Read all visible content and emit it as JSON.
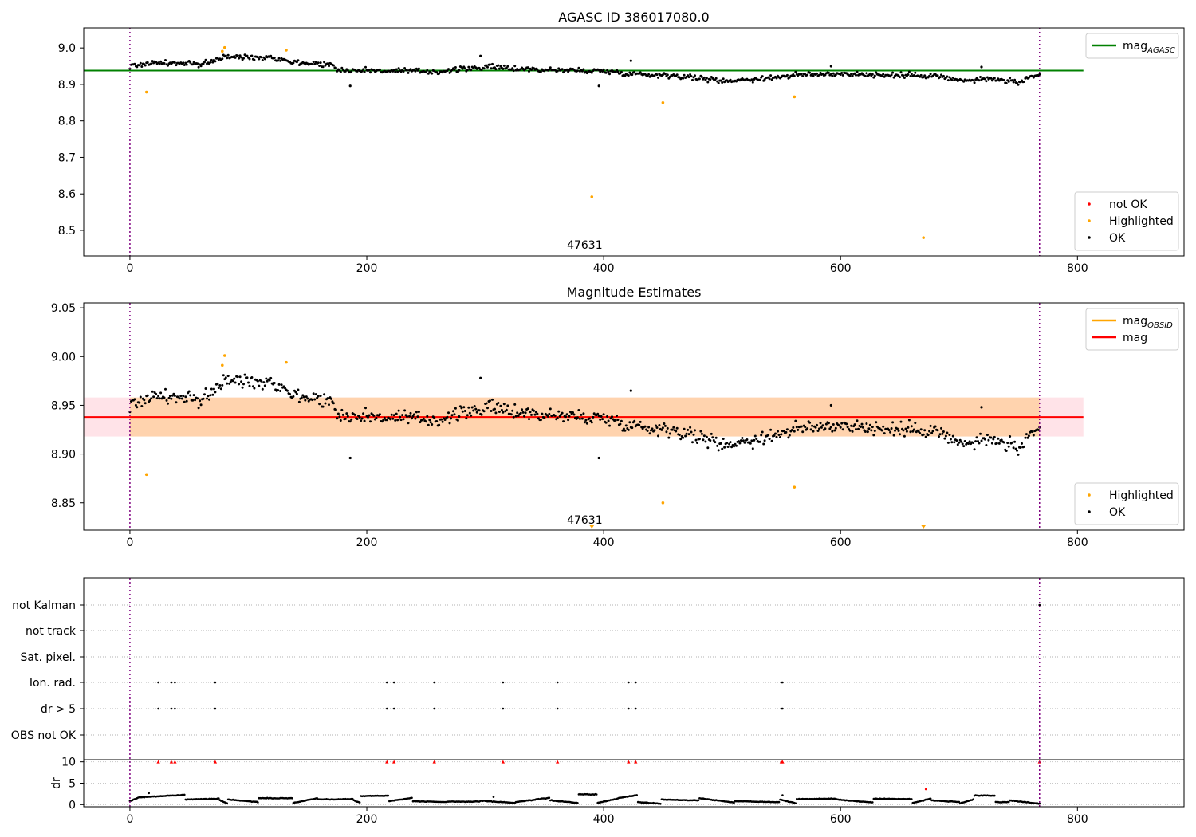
{
  "chart_data": [
    {
      "type": "scatter",
      "title": "AGASC ID 386017080.0",
      "xlim": [
        -39,
        890
      ],
      "ylim": [
        8.43,
        9.055
      ],
      "xticks": [
        0,
        200,
        400,
        600,
        800
      ],
      "yticks": [
        8.5,
        8.6,
        8.7,
        8.8,
        8.9,
        9.0
      ],
      "ytick_labels": [
        "8.5",
        "8.6",
        "8.7",
        "8.8",
        "8.9",
        "9.0"
      ],
      "grid": false,
      "obsid_boundaries": [
        0,
        768
      ],
      "obsid_label": {
        "text": "47631",
        "x": 384
      },
      "reference_lines": [
        {
          "name": "mag_AGASC",
          "legend": "mag",
          "legend_sub": "AGASC",
          "y": 8.938,
          "x_range": [
            -39,
            805
          ],
          "color": "#008000"
        }
      ],
      "series": [
        {
          "name": "not OK",
          "color": "#ff0000",
          "points": []
        },
        {
          "name": "Highlighted",
          "color": "#ffa500",
          "points": [
            [
              14,
              8.879
            ],
            [
              78,
              8.991
            ],
            [
              80,
              9.001
            ],
            [
              132,
              8.994
            ],
            [
              390,
              8.592
            ],
            [
              450,
              8.85
            ],
            [
              561,
              8.866
            ],
            [
              670,
              8.48
            ]
          ]
        },
        {
          "name": "OK",
          "color": "#000000",
          "trend": [
            [
              0,
              8.95
            ],
            [
              20,
              8.96
            ],
            [
              60,
              8.955
            ],
            [
              80,
              8.975
            ],
            [
              120,
              8.975
            ],
            [
              140,
              8.96
            ],
            [
              170,
              8.955
            ],
            [
              175,
              8.94
            ],
            [
              260,
              8.935
            ],
            [
              300,
              8.948
            ],
            [
              350,
              8.94
            ],
            [
              400,
              8.937
            ],
            [
              430,
              8.928
            ],
            [
              460,
              8.925
            ],
            [
              500,
              8.91
            ],
            [
              530,
              8.915
            ],
            [
              560,
              8.925
            ],
            [
              600,
              8.93
            ],
            [
              640,
              8.925
            ],
            [
              680,
              8.925
            ],
            [
              700,
              8.91
            ],
            [
              730,
              8.915
            ],
            [
              750,
              8.905
            ],
            [
              768,
              8.925
            ]
          ],
          "outliers": [
            [
              186,
              8.896
            ],
            [
              296,
              8.978
            ],
            [
              396,
              8.896
            ],
            [
              423,
              8.965
            ],
            [
              592,
              8.95
            ],
            [
              719,
              8.948
            ]
          ]
        }
      ],
      "legends": [
        {
          "position": "upper right",
          "entries": [
            "mag_AGASC"
          ]
        },
        {
          "position": "lower right",
          "entries": [
            "not OK",
            "Highlighted",
            "OK"
          ]
        }
      ]
    },
    {
      "type": "scatter",
      "title": "Magnitude Estimates",
      "xlim": [
        -39,
        890
      ],
      "ylim": [
        8.822,
        9.055
      ],
      "xticks": [
        0,
        200,
        400,
        600,
        800
      ],
      "yticks": [
        8.85,
        8.9,
        8.95,
        9.0,
        9.05
      ],
      "ytick_labels": [
        "8.85",
        "8.90",
        "8.95",
        "9.00",
        "9.05"
      ],
      "grid": false,
      "obsid_boundaries": [
        0,
        768
      ],
      "obsid_label": {
        "text": "47631",
        "x": 384
      },
      "bands": [
        {
          "name": "mag uncertainty",
          "y_range": [
            8.918,
            8.958
          ],
          "x_range": [
            -39,
            805
          ],
          "color": "#ffc0cb"
        },
        {
          "name": "mag_OBSID uncertainty",
          "y_range": [
            8.918,
            8.958
          ],
          "x_range": [
            0,
            768
          ],
          "color": "#ffa500"
        }
      ],
      "reference_lines": [
        {
          "name": "mag_OBSID",
          "legend": "mag",
          "legend_sub": "OBSID",
          "y": 8.938,
          "x_range": [
            0,
            768
          ],
          "color": "#ffa500"
        },
        {
          "name": "mag",
          "legend": "mag",
          "legend_sub": "",
          "y": 8.938,
          "x_range": [
            -39,
            805
          ],
          "color": "#ff0000"
        }
      ],
      "series": [
        {
          "name": "Highlighted",
          "color": "#ffa500",
          "points": [
            [
              14,
              8.879
            ],
            [
              78,
              8.991
            ],
            [
              80,
              9.001
            ],
            [
              132,
              8.994
            ],
            [
              450,
              8.85
            ],
            [
              561,
              8.866
            ]
          ],
          "clipped_markers": [
            390,
            670
          ]
        },
        {
          "name": "OK",
          "color": "#000000",
          "trend": [
            [
              0,
              8.95
            ],
            [
              20,
              8.96
            ],
            [
              60,
              8.955
            ],
            [
              80,
              8.975
            ],
            [
              120,
              8.975
            ],
            [
              140,
              8.96
            ],
            [
              170,
              8.955
            ],
            [
              175,
              8.94
            ],
            [
              260,
              8.935
            ],
            [
              300,
              8.948
            ],
            [
              350,
              8.94
            ],
            [
              400,
              8.937
            ],
            [
              430,
              8.928
            ],
            [
              460,
              8.925
            ],
            [
              500,
              8.91
            ],
            [
              530,
              8.915
            ],
            [
              560,
              8.925
            ],
            [
              600,
              8.93
            ],
            [
              640,
              8.925
            ],
            [
              680,
              8.925
            ],
            [
              700,
              8.91
            ],
            [
              730,
              8.915
            ],
            [
              750,
              8.905
            ],
            [
              768,
              8.925
            ]
          ],
          "outliers": [
            [
              186,
              8.896
            ],
            [
              296,
              8.978
            ],
            [
              396,
              8.896
            ],
            [
              423,
              8.965
            ],
            [
              592,
              8.95
            ],
            [
              719,
              8.948
            ]
          ]
        }
      ],
      "legends": [
        {
          "position": "upper right",
          "entries": [
            "mag_OBSID",
            "mag"
          ]
        },
        {
          "position": "lower right",
          "entries": [
            "Highlighted",
            "OK"
          ]
        }
      ]
    },
    {
      "type": "scatter",
      "title": "",
      "xlim": [
        -39,
        890
      ],
      "xticks": [
        0,
        200,
        400,
        600,
        800
      ],
      "obsid_boundaries": [
        0,
        768
      ],
      "flag_rows": [
        "not Kalman",
        "not track",
        "Sat. pixel.",
        "Ion. rad.",
        "dr > 5",
        "OBS not OK"
      ],
      "flags": {
        "Ion. rad.": [
          24,
          35,
          38,
          72,
          217,
          223,
          257,
          315,
          361,
          421,
          427,
          550,
          551
        ],
        "dr > 5": [
          24,
          35,
          38,
          72,
          217,
          223,
          257,
          315,
          361,
          421,
          427,
          550,
          551
        ],
        "not Kalman": [
          768
        ]
      },
      "flag_color": "#000000",
      "dr_panel": {
        "ylabel": "dr",
        "ylim": [
          -0.5,
          10.5
        ],
        "yticks": [
          0,
          5,
          10
        ],
        "dr_max_marker_color": "#ff0000",
        "dr_max_marker_value": 10,
        "dr_max_marker_x": [
          24,
          35,
          38,
          72,
          217,
          223,
          257,
          315,
          361,
          421,
          427,
          550,
          551,
          768
        ],
        "segments": [
          {
            "x": [
              0,
              7
            ],
            "y": [
              0.8,
              1.6
            ]
          },
          {
            "x": [
              8,
              46
            ],
            "y": [
              1.7,
              2.3
            ]
          },
          {
            "x": [
              47,
              75
            ],
            "y": [
              1.2,
              1.4
            ]
          },
          {
            "x": [
              76,
              82
            ],
            "y": [
              1.0,
              0.3
            ]
          },
          {
            "x": [
              83,
              108
            ],
            "y": [
              1.2,
              0.6
            ]
          },
          {
            "x": [
              109,
              137
            ],
            "y": [
              1.5,
              1.5
            ]
          },
          {
            "x": [
              138,
              158
            ],
            "y": [
              0.4,
              1.5
            ]
          },
          {
            "x": [
              159,
              188
            ],
            "y": [
              1.2,
              1.3
            ]
          },
          {
            "x": [
              189,
              194
            ],
            "y": [
              1.0,
              0.5
            ]
          },
          {
            "x": [
              195,
              218
            ],
            "y": [
              2.0,
              2.1
            ]
          },
          {
            "x": [
              219,
              238
            ],
            "y": [
              0.8,
              1.6
            ]
          },
          {
            "x": [
              239,
              267
            ],
            "y": [
              0.8,
              0.6
            ]
          },
          {
            "x": [
              268,
              295
            ],
            "y": [
              0.7,
              0.7
            ]
          },
          {
            "x": [
              296,
              325
            ],
            "y": [
              0.9,
              0.4
            ]
          },
          {
            "x": [
              326,
              354
            ],
            "y": [
              0.6,
              1.6
            ]
          },
          {
            "x": [
              355,
              378
            ],
            "y": [
              1.0,
              0.4
            ]
          },
          {
            "x": [
              379,
              394
            ],
            "y": [
              2.4,
              2.4
            ]
          },
          {
            "x": [
              395,
              412
            ],
            "y": [
              0.4,
              1.4
            ]
          },
          {
            "x": [
              413,
              428
            ],
            "y": [
              1.6,
              2.2
            ]
          },
          {
            "x": [
              429,
              448
            ],
            "y": [
              0.6,
              0.2
            ]
          },
          {
            "x": [
              449,
              480
            ],
            "y": [
              1.2,
              1.0
            ]
          },
          {
            "x": [
              481,
              510
            ],
            "y": [
              1.5,
              0.5
            ]
          },
          {
            "x": [
              511,
              548
            ],
            "y": [
              0.8,
              0.6
            ]
          },
          {
            "x": [
              549,
              562
            ],
            "y": [
              1.2,
              0.3
            ]
          },
          {
            "x": [
              563,
              596
            ],
            "y": [
              1.3,
              1.4
            ]
          },
          {
            "x": [
              597,
              627
            ],
            "y": [
              1.2,
              0.5
            ]
          },
          {
            "x": [
              628,
              660
            ],
            "y": [
              1.4,
              1.3
            ]
          },
          {
            "x": [
              661,
              676
            ],
            "y": [
              0.4,
              1.4
            ]
          },
          {
            "x": [
              677,
              700
            ],
            "y": [
              1.0,
              0.6
            ]
          },
          {
            "x": [
              701,
              712
            ],
            "y": [
              0.3,
              1.2
            ]
          },
          {
            "x": [
              713,
              730
            ],
            "y": [
              2.1,
              2.1
            ]
          },
          {
            "x": [
              731,
              742
            ],
            "y": [
              0.6,
              0.6
            ]
          },
          {
            "x": [
              743,
              768
            ],
            "y": [
              1.0,
              0.2
            ]
          }
        ],
        "dr_outliers": [
          [
            16,
            2.7
          ],
          [
            307,
            1.8
          ],
          [
            551,
            2.2
          ],
          [
            672,
            3.6
          ]
        ]
      }
    }
  ]
}
